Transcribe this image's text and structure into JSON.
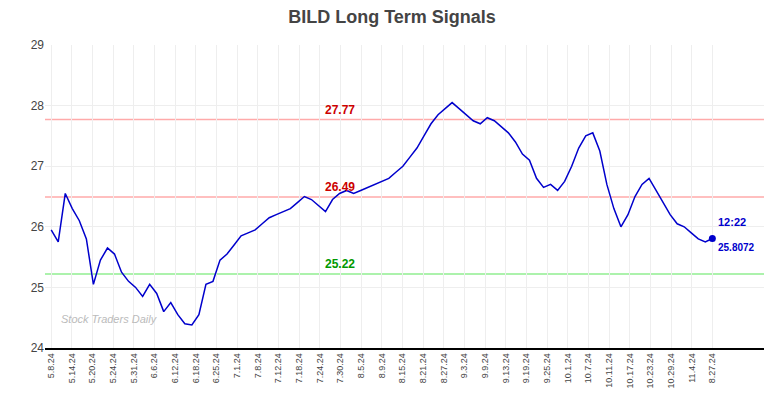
{
  "chart_data": {
    "type": "line",
    "title": "BILD Long Term Signals",
    "watermark": "Stock Traders Daily",
    "color": "#0000cc",
    "values": [
      25.95,
      25.75,
      26.55,
      26.3,
      26.1,
      25.8,
      25.05,
      25.45,
      25.65,
      25.55,
      25.25,
      25.1,
      25.0,
      24.85,
      25.05,
      24.9,
      24.6,
      24.75,
      24.55,
      24.4,
      24.38,
      24.55,
      25.05,
      25.1,
      25.45,
      25.55,
      25.7,
      25.85,
      25.9,
      25.95,
      26.05,
      26.15,
      26.2,
      26.25,
      26.3,
      26.4,
      26.5,
      26.45,
      26.35,
      26.25,
      26.45,
      26.55,
      26.6,
      26.55,
      26.6,
      26.65,
      26.7,
      26.75,
      26.8,
      26.9,
      27.0,
      27.15,
      27.3,
      27.5,
      27.7,
      27.85,
      27.95,
      28.05,
      27.95,
      27.85,
      27.75,
      27.7,
      27.8,
      27.75,
      27.65,
      27.55,
      27.4,
      27.2,
      27.1,
      26.8,
      26.65,
      26.7,
      26.6,
      26.75,
      27.0,
      27.3,
      27.5,
      27.55,
      27.25,
      26.7,
      26.3,
      26.0,
      26.2,
      26.5,
      26.7,
      26.8,
      26.6,
      26.4,
      26.2,
      26.05,
      26.0,
      25.9,
      25.8,
      25.75,
      25.8072
    ],
    "last_point": {
      "label": "12:22",
      "value_label": "25.8072"
    },
    "hlines": [
      {
        "value": 27.77,
        "color": "#ffaaaa",
        "label": {
          "text": "27.77",
          "color": "#cc0000"
        }
      },
      {
        "value": 26.49,
        "color": "#ffaaaa",
        "label": {
          "text": "26.49",
          "color": "#cc0000"
        }
      },
      {
        "value": 25.22,
        "color": "#90ee90",
        "label": {
          "text": "25.22",
          "color": "#009900"
        }
      }
    ],
    "xlim": [
      -0.3,
      34.5
    ],
    "xticks": [
      {
        "value": 0,
        "label": "5.8.24"
      },
      {
        "value": 1,
        "label": "5.14.24"
      },
      {
        "value": 2,
        "label": "5.20.24"
      },
      {
        "value": 3,
        "label": "5.24.24"
      },
      {
        "value": 4,
        "label": "5.31.24"
      },
      {
        "value": 5,
        "label": "6.6.24"
      },
      {
        "value": 6,
        "label": "6.12.24"
      },
      {
        "value": 7,
        "label": "6.18.24"
      },
      {
        "value": 8,
        "label": "6.25.24"
      },
      {
        "value": 9,
        "label": "7.1.24"
      },
      {
        "value": 10,
        "label": "7.8.24"
      },
      {
        "value": 11,
        "label": "7.12.24"
      },
      {
        "value": 12,
        "label": "7.18.24"
      },
      {
        "value": 13,
        "label": "7.24.24"
      },
      {
        "value": 14,
        "label": "7.30.24"
      },
      {
        "value": 15,
        "label": "8.5.24"
      },
      {
        "value": 16,
        "label": "8.9.24"
      },
      {
        "value": 17,
        "label": "8.15.24"
      },
      {
        "value": 18,
        "label": "8.21.24"
      },
      {
        "value": 19,
        "label": "8.27.24"
      },
      {
        "value": 20,
        "label": "9.3.24"
      },
      {
        "value": 21,
        "label": "9.9.24"
      },
      {
        "value": 22,
        "label": "9.13.24"
      },
      {
        "value": 23,
        "label": "9.19.24"
      },
      {
        "value": 24,
        "label": "9.25.24"
      },
      {
        "value": 25,
        "label": "10.1.24"
      },
      {
        "value": 26,
        "label": "10.7.24"
      },
      {
        "value": 27,
        "label": "10.11.24"
      },
      {
        "value": 28,
        "label": "10.17.24"
      },
      {
        "value": 29,
        "label": "10.23.24"
      },
      {
        "value": 30,
        "label": "10.29.24"
      },
      {
        "value": 31,
        "label": "11.4.24"
      },
      {
        "value": 32,
        "label": "8.27.24"
      }
    ],
    "ylim": [
      24.0,
      29.0
    ],
    "yticks": [
      24,
      25,
      26,
      27,
      28,
      29
    ],
    "grid": true
  }
}
